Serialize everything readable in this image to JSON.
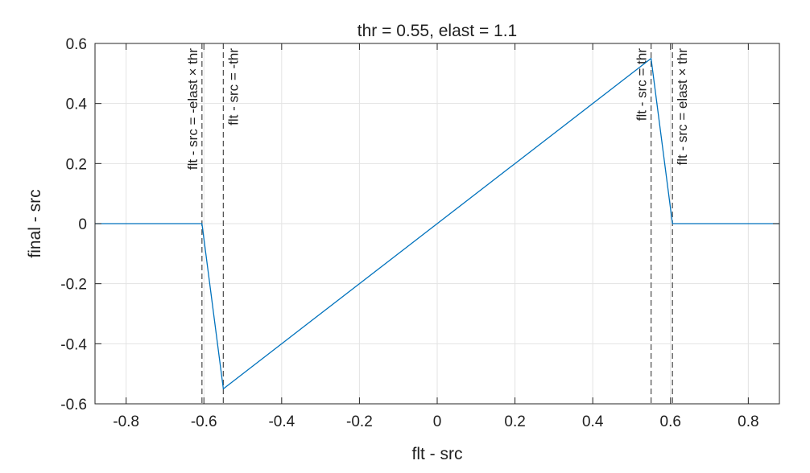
{
  "chart_data": {
    "type": "line",
    "title": "thr = 0.55, elast = 1.1",
    "xlabel": "flt - src",
    "ylabel": "final - src",
    "xlim": [
      -0.88,
      0.88
    ],
    "ylim": [
      -0.6,
      0.6
    ],
    "x_ticks": [
      -0.8,
      -0.6,
      -0.4,
      -0.2,
      0,
      0.2,
      0.4,
      0.6,
      0.8
    ],
    "x_tick_labels": [
      "-0.8",
      "-0.6",
      "-0.4",
      "-0.2",
      "0",
      "0.2",
      "0.4",
      "0.6",
      "0.8"
    ],
    "y_ticks": [
      -0.6,
      -0.4,
      -0.2,
      0,
      0.2,
      0.4,
      0.6
    ],
    "y_tick_labels": [
      "-0.6",
      "-0.4",
      "-0.2",
      "0",
      "0.2",
      "0.4",
      "0.6"
    ],
    "grid": true,
    "series": [
      {
        "color": "#0072BD",
        "x": [
          -0.88,
          -0.605,
          -0.55,
          0.55,
          0.605,
          0.88
        ],
        "y": [
          0,
          0,
          -0.55,
          0.55,
          0,
          0
        ]
      }
    ],
    "vlines": [
      {
        "x": -0.605,
        "label": "flt - src = -elast × thr",
        "label_side": "left"
      },
      {
        "x": -0.55,
        "label": "flt - src = -thr",
        "label_side": "right"
      },
      {
        "x": 0.55,
        "label": "flt - src = thr",
        "label_side": "left"
      },
      {
        "x": 0.605,
        "label": "flt - src = elast × thr",
        "label_side": "right"
      }
    ],
    "vline_color": "#555555",
    "grid_color": "#e3e3e3",
    "axis_color": "#262626"
  }
}
